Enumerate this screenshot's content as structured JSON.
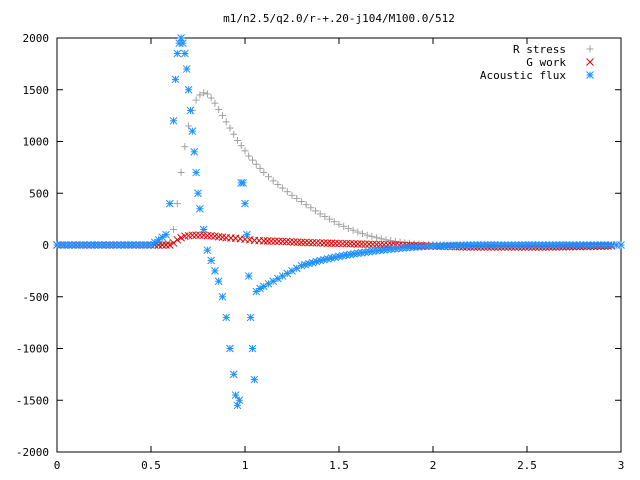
{
  "chart_data": {
    "type": "scatter",
    "title": "m1/n2.5/q2.0/r-+.20-j104/M100.0/512",
    "xlabel": "",
    "ylabel": "",
    "xlim": [
      0,
      3
    ],
    "ylim": [
      -2000,
      2000
    ],
    "x_ticks": [
      "0",
      "0.5",
      "1",
      "1.5",
      "2",
      "2.5",
      "3"
    ],
    "y_ticks": [
      "2000",
      "1500",
      "1000",
      "500",
      "0",
      "-500",
      "-1000",
      "-1500",
      "-2000"
    ],
    "grid": false,
    "legend_position": "top-right",
    "series": [
      {
        "name": "R stress",
        "marker": "plus",
        "color": "#a0a0a0",
        "x": [
          0,
          0.1,
          0.2,
          0.3,
          0.4,
          0.5,
          0.55,
          0.6,
          0.62,
          0.64,
          0.66,
          0.68,
          0.7,
          0.72,
          0.74,
          0.76,
          0.78,
          0.8,
          0.82,
          0.84,
          0.86,
          0.88,
          0.9,
          0.92,
          0.94,
          0.96,
          0.98,
          1.0,
          1.02,
          1.04,
          1.06,
          1.08,
          1.1,
          1.15,
          1.2,
          1.25,
          1.3,
          1.35,
          1.4,
          1.45,
          1.5,
          1.55,
          1.6,
          1.65,
          1.7,
          1.75,
          1.8,
          1.85,
          1.9,
          1.95,
          2.0,
          2.1,
          2.2,
          2.3,
          2.4,
          2.5,
          2.6,
          2.7,
          2.8,
          2.9,
          2.95
        ],
        "y": [
          0,
          0,
          0,
          0,
          0,
          0,
          0,
          20,
          150,
          400,
          700,
          950,
          1150,
          1300,
          1400,
          1450,
          1470,
          1460,
          1420,
          1370,
          1310,
          1250,
          1190,
          1130,
          1070,
          1010,
          960,
          910,
          860,
          820,
          780,
          740,
          700,
          620,
          550,
          480,
          420,
          360,
          300,
          250,
          200,
          160,
          125,
          95,
          70,
          50,
          35,
          22,
          12,
          6,
          2,
          0,
          0,
          0,
          0,
          0,
          0,
          0,
          0,
          0,
          0
        ]
      },
      {
        "name": "G work",
        "marker": "cross",
        "color": "#e00000",
        "x": [
          0,
          0.1,
          0.2,
          0.3,
          0.4,
          0.5,
          0.6,
          0.62,
          0.64,
          0.66,
          0.68,
          0.7,
          0.72,
          0.74,
          0.76,
          0.78,
          0.8,
          0.82,
          0.84,
          0.86,
          0.88,
          0.9,
          0.95,
          1.0,
          1.05,
          1.1,
          1.2,
          1.3,
          1.4,
          1.5,
          1.6,
          1.7,
          1.8,
          1.9,
          2.0,
          2.1,
          2.2,
          2.4,
          2.6,
          2.8,
          2.95
        ],
        "y": [
          0,
          0,
          0,
          0,
          0,
          0,
          0,
          20,
          50,
          70,
          85,
          90,
          95,
          95,
          95,
          95,
          90,
          90,
          85,
          80,
          75,
          70,
          65,
          55,
          45,
          40,
          35,
          25,
          20,
          15,
          10,
          5,
          0,
          -5,
          -10,
          -15,
          -20,
          -20,
          -20,
          -15,
          -10
        ]
      },
      {
        "name": "Acoustic flux",
        "marker": "star",
        "color": "#1e90ff",
        "x": [
          0,
          0.1,
          0.2,
          0.3,
          0.4,
          0.5,
          0.58,
          0.6,
          0.62,
          0.63,
          0.64,
          0.65,
          0.66,
          0.67,
          0.68,
          0.69,
          0.7,
          0.71,
          0.72,
          0.73,
          0.74,
          0.75,
          0.76,
          0.78,
          0.8,
          0.82,
          0.84,
          0.86,
          0.88,
          0.9,
          0.92,
          0.94,
          0.95,
          0.96,
          0.97,
          0.98,
          0.99,
          1.0,
          1.01,
          1.02,
          1.03,
          1.04,
          1.05,
          1.06,
          1.08,
          1.1,
          1.15,
          1.2,
          1.25,
          1.3,
          1.4,
          1.5,
          1.6,
          1.7,
          1.8,
          1.9,
          2.0,
          2.2,
          2.4,
          2.6,
          2.8,
          2.95,
          3.0
        ],
        "y": [
          0,
          0,
          0,
          0,
          0,
          0,
          100,
          400,
          1200,
          1600,
          1850,
          1950,
          2000,
          1950,
          1850,
          1700,
          1500,
          1300,
          1100,
          900,
          700,
          500,
          350,
          150,
          -50,
          -150,
          -250,
          -350,
          -500,
          -700,
          -1000,
          -1250,
          -1450,
          -1550,
          -1500,
          600,
          600,
          400,
          100,
          -300,
          -700,
          -1000,
          -1300,
          -450,
          -420,
          -400,
          -350,
          -300,
          -250,
          -200,
          -150,
          -110,
          -80,
          -55,
          -35,
          -20,
          -10,
          0,
          0,
          0,
          0,
          0,
          0
        ]
      }
    ]
  }
}
